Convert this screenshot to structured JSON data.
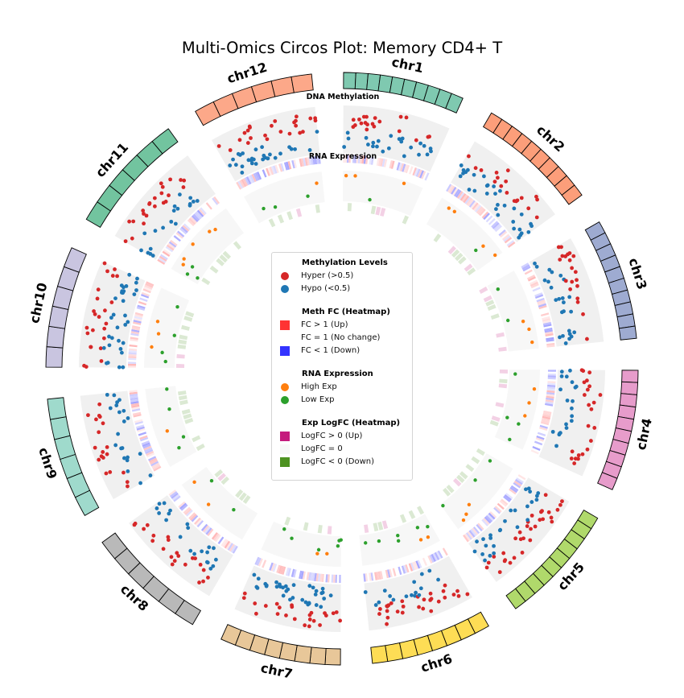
{
  "title": "Multi-Omics Circos Plot: Memory CD4+ T",
  "track_labels": {
    "methylation": "DNA Methylation",
    "rna": "RNA Expression"
  },
  "colors": {
    "hyper": "#d62728",
    "hypo": "#1f77b4",
    "high_exp": "#ff7f0e",
    "low_exp": "#2ca02c",
    "fc_up": "#ff3333",
    "fc_nochange": "#ffffff",
    "fc_down": "#3333ff",
    "logfc_up": "#c51b7d",
    "logfc_zero": "#f7f7f7",
    "logfc_down": "#4d9221",
    "track_bg": "#f0f0f0",
    "rna_bg": "#f7f7f7"
  },
  "legend": {
    "sections": [
      {
        "title": "Methylation Levels",
        "items": [
          {
            "label": "Hyper (>0.5)",
            "marker": "dot",
            "color": "#d62728"
          },
          {
            "label": "Hypo (<0.5)",
            "marker": "dot",
            "color": "#1f77b4"
          }
        ]
      },
      {
        "title": "Meth FC (Heatmap)",
        "items": [
          {
            "label": "FC > 1 (Up)",
            "marker": "square",
            "color": "#ff3333"
          },
          {
            "label": "FC = 1 (No change)",
            "marker": "square",
            "color": "#ffffff"
          },
          {
            "label": "FC < 1 (Down)",
            "marker": "square",
            "color": "#3333ff"
          }
        ]
      },
      {
        "title": "RNA Expression",
        "items": [
          {
            "label": "High Exp",
            "marker": "dot",
            "color": "#ff7f0e"
          },
          {
            "label": "Low Exp",
            "marker": "dot",
            "color": "#2ca02c"
          }
        ]
      },
      {
        "title": "Exp LogFC (Heatmap)",
        "items": [
          {
            "label": "LogFC > 0 (Up)",
            "marker": "square",
            "color": "#c51b7d"
          },
          {
            "label": "LogFC = 0",
            "marker": "square",
            "color": "#f7f7f7"
          },
          {
            "label": "LogFC < 0 (Down)",
            "marker": "square",
            "color": "#4d9221"
          }
        ]
      }
    ]
  },
  "chart_data": {
    "type": "circos",
    "title": "Multi-Omics Circos Plot: Memory CD4+ T",
    "chromosomes": [
      {
        "name": "chr1",
        "color": "#7fc9b0",
        "bins": 10
      },
      {
        "name": "chr2",
        "color": "#fc9e7a",
        "bins": 10
      },
      {
        "name": "chr3",
        "color": "#9eabd1",
        "bins": 10
      },
      {
        "name": "chr4",
        "color": "#e79ccb",
        "bins": 10
      },
      {
        "name": "chr5",
        "color": "#b0d96b",
        "bins": 10
      },
      {
        "name": "chr6",
        "color": "#fedd55",
        "bins": 8
      },
      {
        "name": "chr7",
        "color": "#e8c799",
        "bins": 8
      },
      {
        "name": "chr8",
        "color": "#b9b9b9",
        "bins": 6
      },
      {
        "name": "chr9",
        "color": "#9fdacc",
        "bins": 6
      },
      {
        "name": "chr10",
        "color": "#c9c5e0",
        "bins": 6
      },
      {
        "name": "chr11",
        "color": "#72c49f",
        "bins": 6
      },
      {
        "name": "chr12",
        "color": "#fca889",
        "bins": 6
      }
    ],
    "tracks": [
      {
        "name": "DNA Methylation",
        "type": "scatter",
        "value_range": [
          0,
          1
        ],
        "threshold": 0.5
      },
      {
        "name": "Meth FC",
        "type": "heatmap"
      },
      {
        "name": "RNA Expression",
        "type": "scatter"
      },
      {
        "name": "Exp LogFC",
        "type": "heatmap"
      }
    ]
  }
}
